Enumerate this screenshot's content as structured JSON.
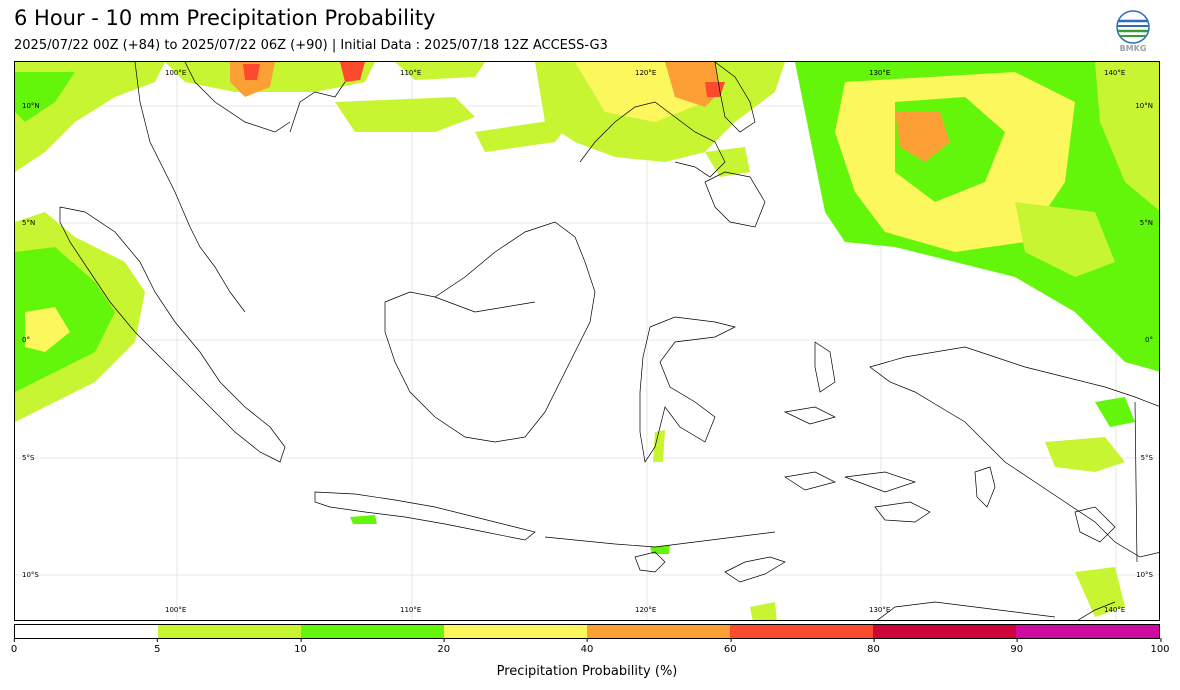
{
  "header": {
    "title": "6 Hour - 10 mm Precipitation Probability",
    "subtitle": "2025/07/22 00Z (+84) to 2025/07/22 06Z (+90) | Initial Data : 2025/07/18 12Z ACCESS-G3"
  },
  "logo": {
    "text": "BMKG",
    "icon": "bmkg-globe-icon"
  },
  "map": {
    "lon_labels": [
      "100°E",
      "110°E",
      "120°E",
      "130°E",
      "140°E"
    ],
    "lat_labels": [
      "10°N",
      "5°N",
      "0°",
      "5°S",
      "10°S"
    ],
    "extent": {
      "lon": [
        93.5,
        142.5
      ],
      "lat": [
        -12,
        12
      ]
    },
    "grid": true
  },
  "colorbar": {
    "label": "Precipitation Probability (%)",
    "ticks": [
      "0",
      "5",
      "10",
      "20",
      "40",
      "60",
      "80",
      "90",
      "100"
    ],
    "colors": [
      "#ffffff",
      "#c8f532",
      "#63f50a",
      "#fcf75c",
      "#fca036",
      "#fc4a2d",
      "#cf0539",
      "#cf0aa0"
    ]
  }
}
